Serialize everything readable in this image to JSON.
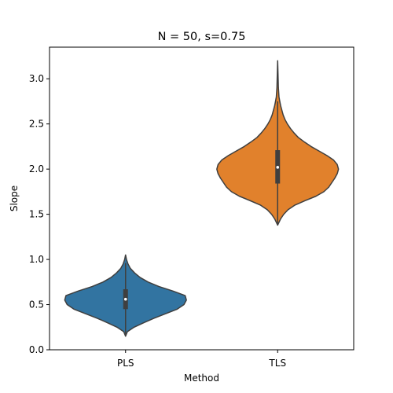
{
  "chart_data": {
    "type": "violin",
    "title": "N = 50, s=0.75",
    "xlabel": "Method",
    "ylabel": "Slope",
    "categories": [
      "PLS",
      "TLS"
    ],
    "ylim": [
      0.0,
      3.35
    ],
    "yticks": [
      "0.0",
      "0.5",
      "1.0",
      "1.5",
      "2.0",
      "2.5",
      "3.0"
    ],
    "grid": false,
    "series": [
      {
        "category": "PLS",
        "color": "#3274a1",
        "min": 0.15,
        "max": 1.05,
        "q1": 0.45,
        "median": 0.56,
        "q3": 0.67,
        "whisker_low": 0.15,
        "whisker_high": 0.96,
        "density": [
          [
            0.15,
            0.0
          ],
          [
            0.2,
            0.03
          ],
          [
            0.25,
            0.14
          ],
          [
            0.3,
            0.3
          ],
          [
            0.35,
            0.47
          ],
          [
            0.4,
            0.66
          ],
          [
            0.45,
            0.85
          ],
          [
            0.5,
            0.96
          ],
          [
            0.55,
            1.0
          ],
          [
            0.6,
            0.98
          ],
          [
            0.65,
            0.78
          ],
          [
            0.7,
            0.55
          ],
          [
            0.75,
            0.37
          ],
          [
            0.8,
            0.24
          ],
          [
            0.85,
            0.15
          ],
          [
            0.9,
            0.08
          ],
          [
            0.95,
            0.04
          ],
          [
            1.0,
            0.015
          ],
          [
            1.05,
            0.0
          ]
        ]
      },
      {
        "category": "TLS",
        "color": "#e1812c",
        "min": 1.38,
        "max": 3.2,
        "q1": 1.84,
        "median": 2.02,
        "q3": 2.21,
        "whisker_low": 1.38,
        "whisker_high": 2.75,
        "density": [
          [
            1.38,
            0.0
          ],
          [
            1.45,
            0.05
          ],
          [
            1.5,
            0.1
          ],
          [
            1.55,
            0.17
          ],
          [
            1.6,
            0.28
          ],
          [
            1.65,
            0.45
          ],
          [
            1.7,
            0.63
          ],
          [
            1.75,
            0.76
          ],
          [
            1.8,
            0.84
          ],
          [
            1.85,
            0.89
          ],
          [
            1.9,
            0.94
          ],
          [
            1.95,
            0.98
          ],
          [
            2.0,
            1.0
          ],
          [
            2.05,
            0.98
          ],
          [
            2.1,
            0.92
          ],
          [
            2.15,
            0.81
          ],
          [
            2.2,
            0.68
          ],
          [
            2.25,
            0.55
          ],
          [
            2.3,
            0.44
          ],
          [
            2.35,
            0.34
          ],
          [
            2.4,
            0.27
          ],
          [
            2.45,
            0.21
          ],
          [
            2.5,
            0.16
          ],
          [
            2.55,
            0.12
          ],
          [
            2.6,
            0.09
          ],
          [
            2.65,
            0.07
          ],
          [
            2.7,
            0.05
          ],
          [
            2.75,
            0.035
          ],
          [
            2.8,
            0.022
          ],
          [
            2.9,
            0.012
          ],
          [
            3.0,
            0.008
          ],
          [
            3.1,
            0.004
          ],
          [
            3.2,
            0.0
          ]
        ]
      }
    ]
  }
}
